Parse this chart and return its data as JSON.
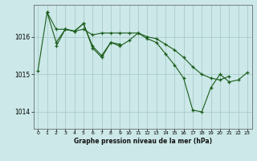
{
  "title": "Graphe pression niveau de la mer (hPa)",
  "background_color": "#cce8e8",
  "grid_color": "#aacccc",
  "line_color": "#1a5c1a",
  "ylim": [
    1013.55,
    1016.85
  ],
  "xlim": [
    -0.5,
    23.5
  ],
  "yticks": [
    1014,
    1015,
    1016
  ],
  "xticks": [
    0,
    1,
    2,
    3,
    4,
    5,
    6,
    7,
    8,
    9,
    10,
    11,
    12,
    13,
    14,
    15,
    16,
    17,
    18,
    19,
    20,
    21,
    22,
    23
  ],
  "series": [
    {
      "x": [
        1,
        2,
        3,
        4,
        5,
        6,
        7,
        8,
        9,
        10,
        11,
        12,
        13,
        14,
        15,
        16,
        17,
        18,
        19,
        20,
        21
      ],
      "y": [
        1016.65,
        1016.2,
        1016.2,
        1016.15,
        1016.2,
        1016.05,
        1016.1,
        1016.1,
        1016.1,
        1016.1,
        1016.1,
        1016.0,
        1015.95,
        1015.8,
        1015.65,
        1015.45,
        1015.2,
        1015.0,
        1014.9,
        1014.85,
        1014.95
      ]
    },
    {
      "x": [
        0,
        1,
        2,
        3,
        4,
        5,
        6,
        7,
        8,
        9,
        10,
        11,
        12,
        13,
        14,
        15,
        16,
        17,
        18,
        19,
        20,
        21,
        22,
        23
      ],
      "y": [
        1015.1,
        1016.65,
        1015.85,
        1016.2,
        1016.15,
        1016.35,
        1015.75,
        1015.5,
        1015.85,
        1015.75,
        1015.9,
        1016.1,
        1015.95,
        1015.85,
        1015.55,
        1015.25,
        1014.9,
        1014.05,
        1014.0,
        1014.65,
        1015.0,
        1014.8,
        1014.85,
        1015.05
      ]
    },
    {
      "x": [
        2,
        3,
        4,
        5,
        6,
        7,
        8,
        9
      ],
      "y": [
        1015.75,
        1016.2,
        1016.15,
        1016.35,
        1015.7,
        1015.45,
        1015.85,
        1015.8
      ]
    }
  ]
}
